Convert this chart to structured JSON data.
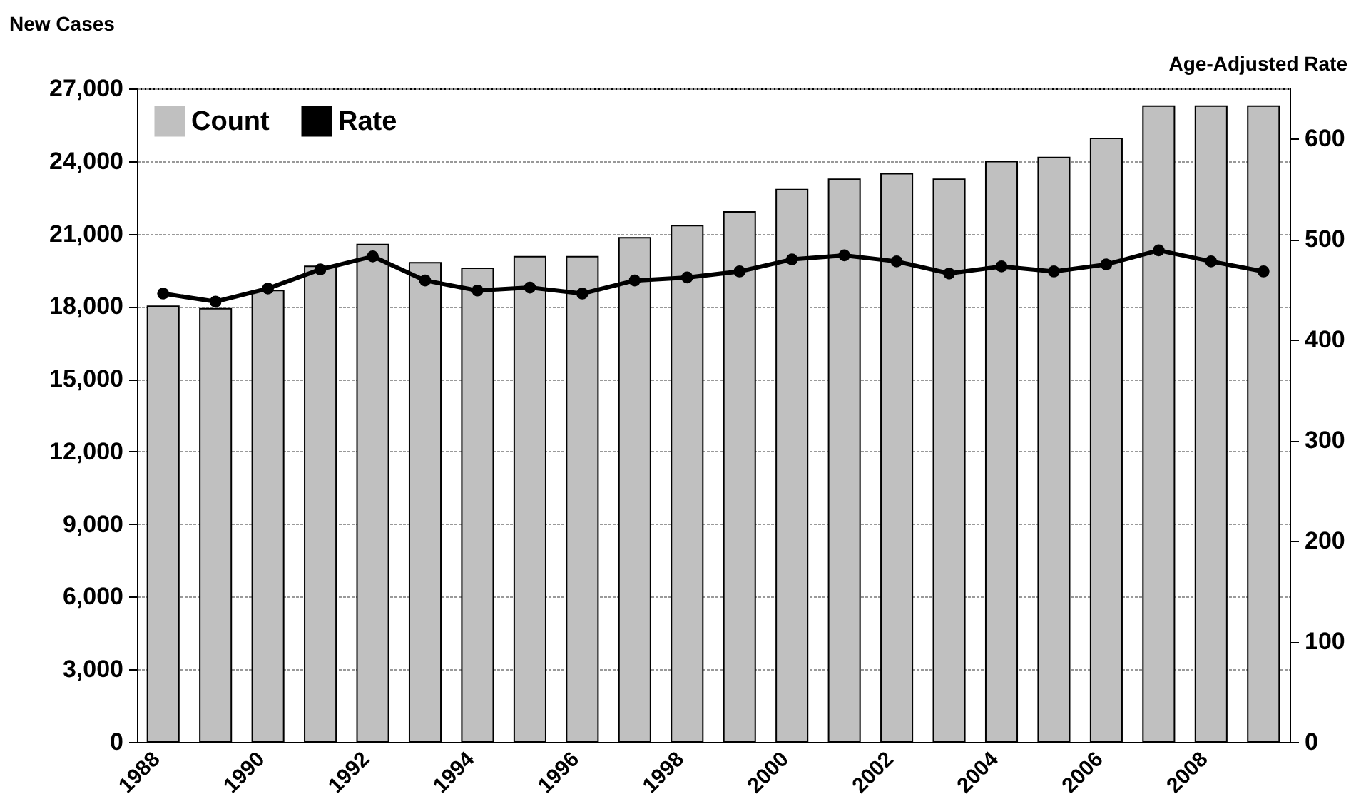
{
  "chart_data": {
    "type": "bar",
    "ylabel": "New Cases",
    "y2label": "Age-Adjusted Rate",
    "categories": [
      "1988",
      null,
      "1990",
      null,
      "1992",
      null,
      "1994",
      null,
      "1996",
      null,
      "1998",
      null,
      "2000",
      null,
      "2002",
      null,
      "2004",
      null,
      "2006",
      null,
      "2008",
      null
    ],
    "series": [
      {
        "name": "Count",
        "color": "#c0c0c0",
        "values": [
          18000,
          17900,
          18650,
          19650,
          20550,
          19800,
          19570,
          20050,
          20050,
          20830,
          21330,
          21900,
          22820,
          23250,
          23480,
          23250,
          23980,
          24150,
          24940,
          26270,
          26270,
          26270
        ]
      },
      {
        "name": "Rate",
        "type": "line",
        "axis": "y2",
        "color": "#000000",
        "values": [
          446,
          438,
          451,
          470,
          483,
          459,
          449,
          452,
          446,
          459,
          462,
          468,
          480,
          484,
          478,
          466,
          473,
          468,
          475,
          489,
          478,
          468
        ]
      }
    ],
    "ylim": [
      0,
      27000
    ],
    "yticks": [
      {
        "value": 0,
        "label": "0"
      },
      {
        "value": 3000,
        "label": "3,000"
      },
      {
        "value": 6000,
        "label": "6,000"
      },
      {
        "value": 9000,
        "label": "9,000"
      },
      {
        "value": 12000,
        "label": "12,000"
      },
      {
        "value": 15000,
        "label": "15,000"
      },
      {
        "value": 18000,
        "label": "18,000"
      },
      {
        "value": 21000,
        "label": "21,000"
      },
      {
        "value": 24000,
        "label": "24,000"
      },
      {
        "value": 27000,
        "label": "27,000"
      }
    ],
    "y2lim": [
      0,
      650
    ],
    "y2ticks": [
      0,
      100,
      200,
      300,
      400,
      500,
      600
    ],
    "grid": "y",
    "legend": "top left",
    "marker": "circle",
    "line_style": "solid"
  }
}
